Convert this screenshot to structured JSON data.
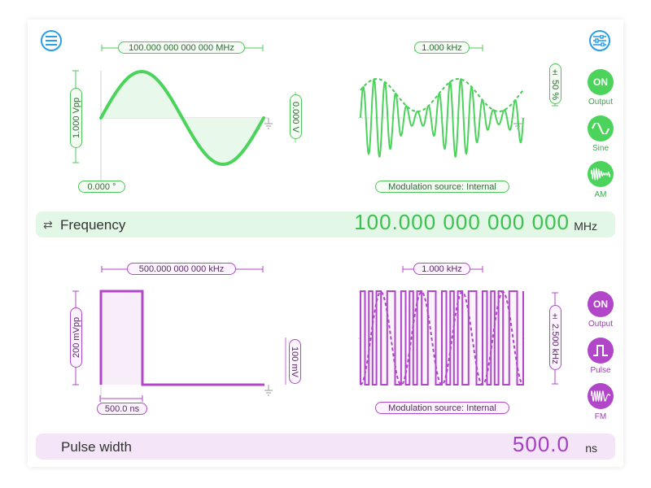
{
  "channel1": {
    "color": "#4cc85a",
    "frequency_pill": "100.000 000 000 000 MHz",
    "amplitude_pill": "1.000 Vpp",
    "offset_pill": "0.000 V",
    "phase_pill": "0.000 °",
    "mod_frequency_pill": "1.000 kHz",
    "mod_depth_pill": "± 50 %",
    "mod_source_pill": "Modulation source: Internal",
    "output_button": "ON",
    "output_label": "Output",
    "waveform_label": "Sine",
    "modulation_label": "AM",
    "param_label": "Frequency",
    "param_value": "100.000 000 000 000",
    "param_unit": "MHz"
  },
  "channel2": {
    "color": "#b146c9",
    "frequency_pill": "500.000 000 000 kHz",
    "amplitude_pill": "200 mVpp",
    "offset_pill": "100 mV",
    "width_pill": "500.0 ns",
    "mod_frequency_pill": "1.000 kHz",
    "mod_deviation_pill": "± 2.500 kHz",
    "mod_source_pill": "Modulation source: Internal",
    "output_button": "ON",
    "output_label": "Output",
    "waveform_label": "Pulse",
    "modulation_label": "FM",
    "param_label": "Pulse width",
    "param_value": "500.0",
    "param_unit": "ns"
  },
  "icons": {
    "menu": "hamburger-menu-icon",
    "settings": "sliders-settings-icon",
    "swap": "swap-arrows-icon",
    "ground": "ground-icon"
  }
}
